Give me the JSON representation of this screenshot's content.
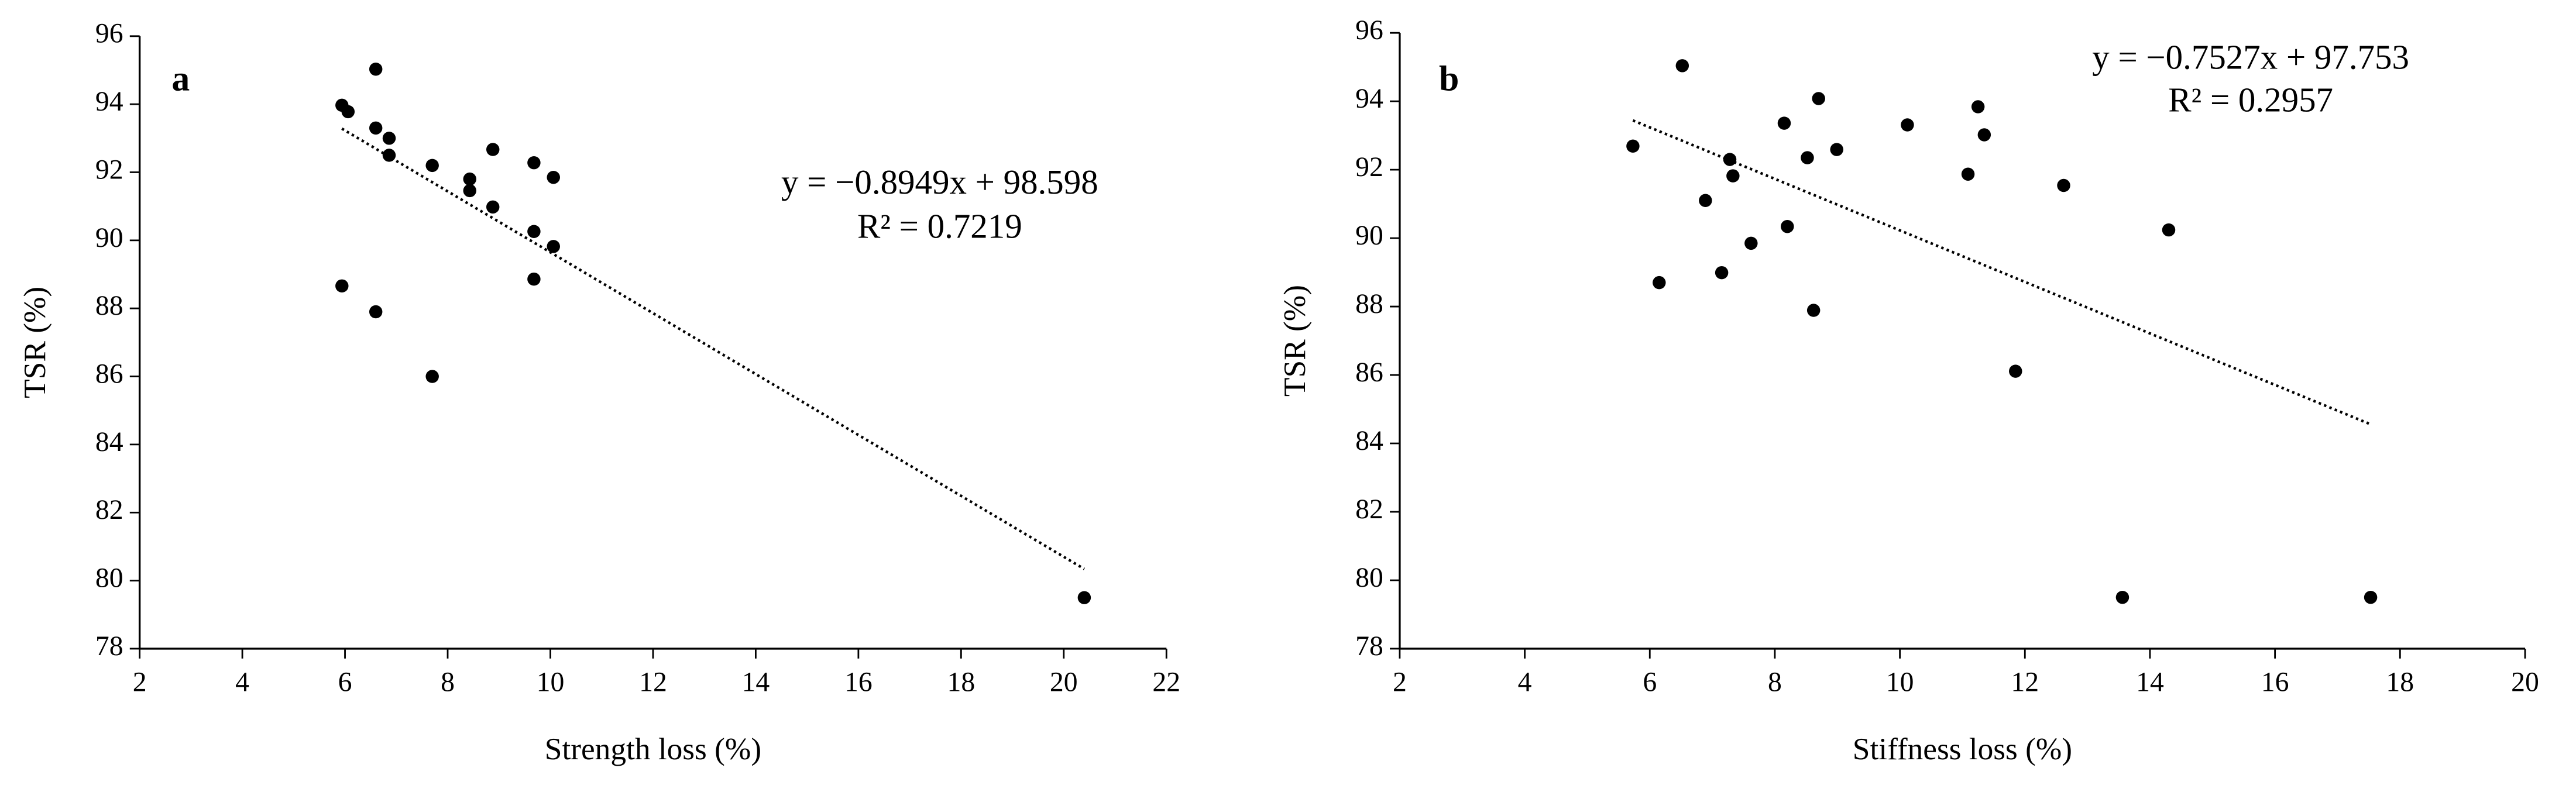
{
  "chart_data": [
    {
      "type": "scatter",
      "label": "a",
      "x_label": "Strength loss (%)",
      "y_label": "TSR (%)",
      "color": "#000000",
      "x": [
        5.94,
        6.06,
        6.6,
        6.6,
        6.86,
        6.86,
        7.7,
        8.43,
        8.43,
        8.88,
        8.88,
        9.68,
        9.68,
        10.06,
        10.06,
        9.68,
        5.94,
        6.6,
        7.7,
        20.4
      ],
      "values": [
        93.97,
        93.78,
        95.03,
        93.3,
        93.0,
        92.5,
        92.2,
        91.8,
        91.46,
        92.67,
        90.98,
        92.28,
        90.26,
        91.85,
        89.82,
        88.86,
        88.66,
        87.9,
        86.0,
        79.5
      ],
      "xlim": [
        2,
        22
      ],
      "xticks": [
        2,
        4,
        6,
        8,
        10,
        12,
        14,
        16,
        18,
        20,
        22
      ],
      "ylim": [
        78,
        96
      ],
      "yticks": [
        78,
        80,
        82,
        84,
        86,
        88,
        90,
        92,
        94,
        96
      ],
      "trendline": {
        "slope": -0.8949,
        "intercept": 98.598,
        "equation": "y = −0.8949x + 98.598",
        "r_squared": "R² = 0.7219"
      }
    },
    {
      "type": "scatter",
      "label": "b",
      "x_label": "Stiffness loss (%)",
      "y_label": "TSR (%)",
      "color": "#000000",
      "x": [
        5.73,
        6.52,
        6.15,
        6.89,
        7.15,
        7.28,
        7.33,
        7.62,
        8.15,
        8.2,
        8.52,
        8.7,
        8.62,
        8.99,
        10.12,
        11.09,
        11.25,
        11.35,
        11.85,
        12.62,
        14.3,
        13.56,
        17.53
      ],
      "values": [
        92.69,
        95.04,
        88.7,
        91.1,
        88.99,
        92.3,
        91.82,
        89.85,
        93.36,
        90.34,
        92.35,
        94.08,
        87.89,
        92.59,
        93.31,
        91.87,
        93.84,
        93.02,
        86.11,
        91.54,
        90.24,
        79.5,
        79.5
      ],
      "xlim": [
        2,
        20
      ],
      "xticks": [
        2,
        4,
        6,
        8,
        10,
        12,
        14,
        16,
        18,
        20
      ],
      "ylim": [
        78,
        96
      ],
      "yticks": [
        78,
        80,
        82,
        84,
        86,
        88,
        90,
        92,
        94,
        96
      ],
      "trendline": {
        "slope": -0.7527,
        "intercept": 97.753,
        "equation": "y = −0.7527x + 97.753",
        "r_squared": "R² = 0.2957"
      }
    }
  ]
}
